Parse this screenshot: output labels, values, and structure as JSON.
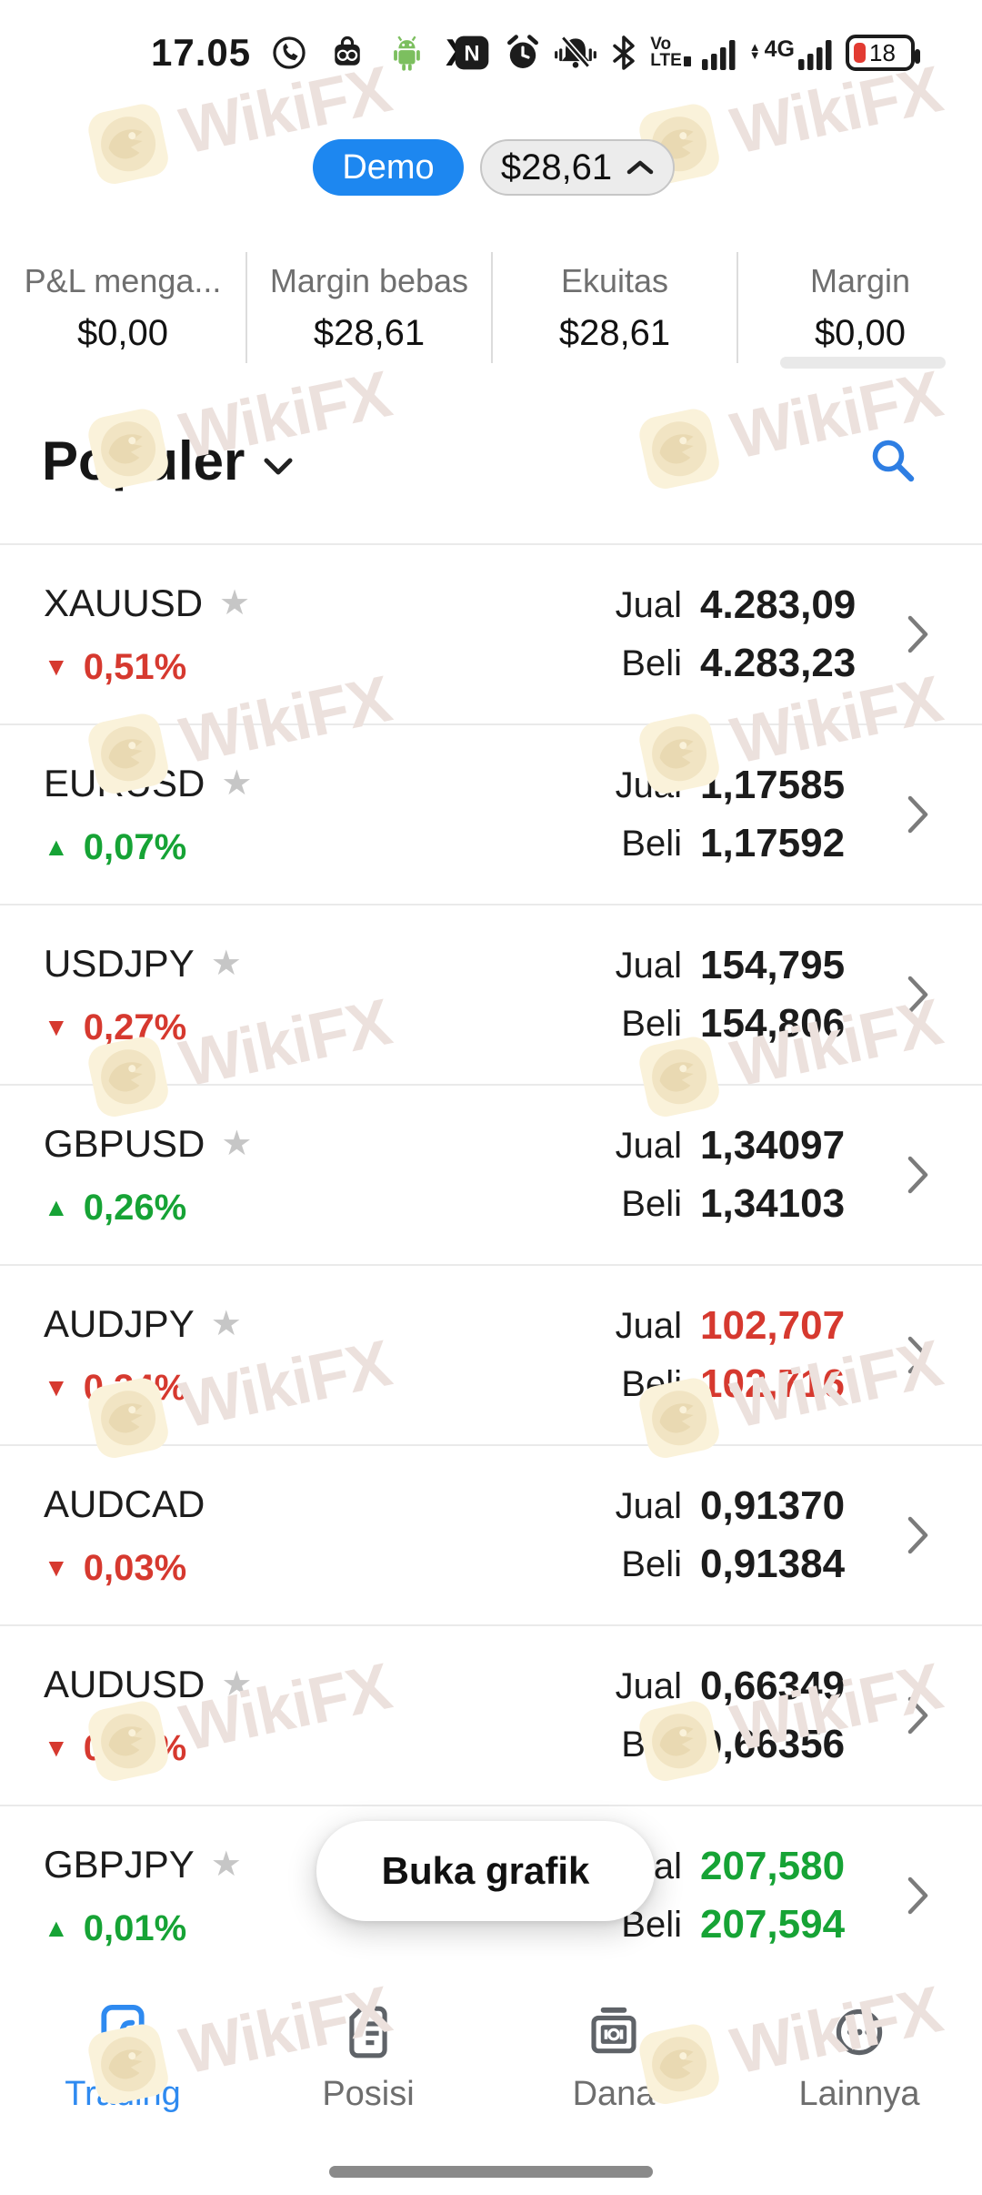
{
  "status_bar": {
    "time": "17.05",
    "battery": "18",
    "network": "4G",
    "volte_top": "Vo",
    "volte_bottom": "LTE",
    "nfc_letter": "N",
    "x_app_glyph": "X"
  },
  "account_header": {
    "mode_label": "Demo",
    "balance": "$28,61"
  },
  "summary": {
    "items": [
      {
        "label": "P&L menga...",
        "value": "$0,00"
      },
      {
        "label": "Margin bebas",
        "value": "$28,61"
      },
      {
        "label": "Ekuitas",
        "value": "$28,61"
      },
      {
        "label": "Margin",
        "value": "$0,00"
      }
    ]
  },
  "watchlist": {
    "title": "Populer",
    "sell_label": "Jual",
    "buy_label": "Beli",
    "instruments": [
      {
        "symbol": "XAUUSD",
        "starred": true,
        "direction": "down",
        "change": "0,51%",
        "sell": "4.283,09",
        "buy": "4.283,23",
        "price_color": "default"
      },
      {
        "symbol": "EURUSD",
        "starred": true,
        "direction": "up",
        "change": "0,07%",
        "sell": "1,17585",
        "buy": "1,17592",
        "price_color": "default"
      },
      {
        "symbol": "USDJPY",
        "starred": true,
        "direction": "down",
        "change": "0,27%",
        "sell": "154,795",
        "buy": "154,806",
        "price_color": "default"
      },
      {
        "symbol": "GBPUSD",
        "starred": true,
        "direction": "up",
        "change": "0,26%",
        "sell": "1,34097",
        "buy": "1,34103",
        "price_color": "default"
      },
      {
        "symbol": "AUDJPY",
        "starred": true,
        "direction": "down",
        "change": "0,34%",
        "sell": "102,707",
        "buy": "102,716",
        "price_color": "red"
      },
      {
        "symbol": "AUDCAD",
        "starred": false,
        "direction": "down",
        "change": "0,03%",
        "sell": "0,91370",
        "buy": "0,91384",
        "price_color": "default"
      },
      {
        "symbol": "AUDUSD",
        "starred": true,
        "direction": "down",
        "change": "0,07%",
        "sell": "0,66349",
        "buy": "0,66356",
        "price_color": "default"
      },
      {
        "symbol": "GBPJPY",
        "starred": true,
        "direction": "up",
        "change": "0,01%",
        "sell": "207,580",
        "buy": "207,594",
        "price_color": "green"
      }
    ]
  },
  "overlay": {
    "open_chart_label": "Buka grafik"
  },
  "bottom_nav": {
    "items": [
      {
        "label": "Trading",
        "icon": "trading-icon",
        "active": true
      },
      {
        "label": "Posisi",
        "icon": "positions-icon",
        "active": false
      },
      {
        "label": "Dana",
        "icon": "funds-icon",
        "active": false
      },
      {
        "label": "Lainnya",
        "icon": "more-icon",
        "active": false
      }
    ]
  },
  "watermark": {
    "text": "WikiFX"
  },
  "colors": {
    "accent_blue": "#1d87f0",
    "link_blue": "#2e7ee3",
    "down_red": "#d6392f",
    "up_green": "#16a335",
    "star_gray": "#c6c6c6",
    "battery_red": "#e23b32"
  }
}
